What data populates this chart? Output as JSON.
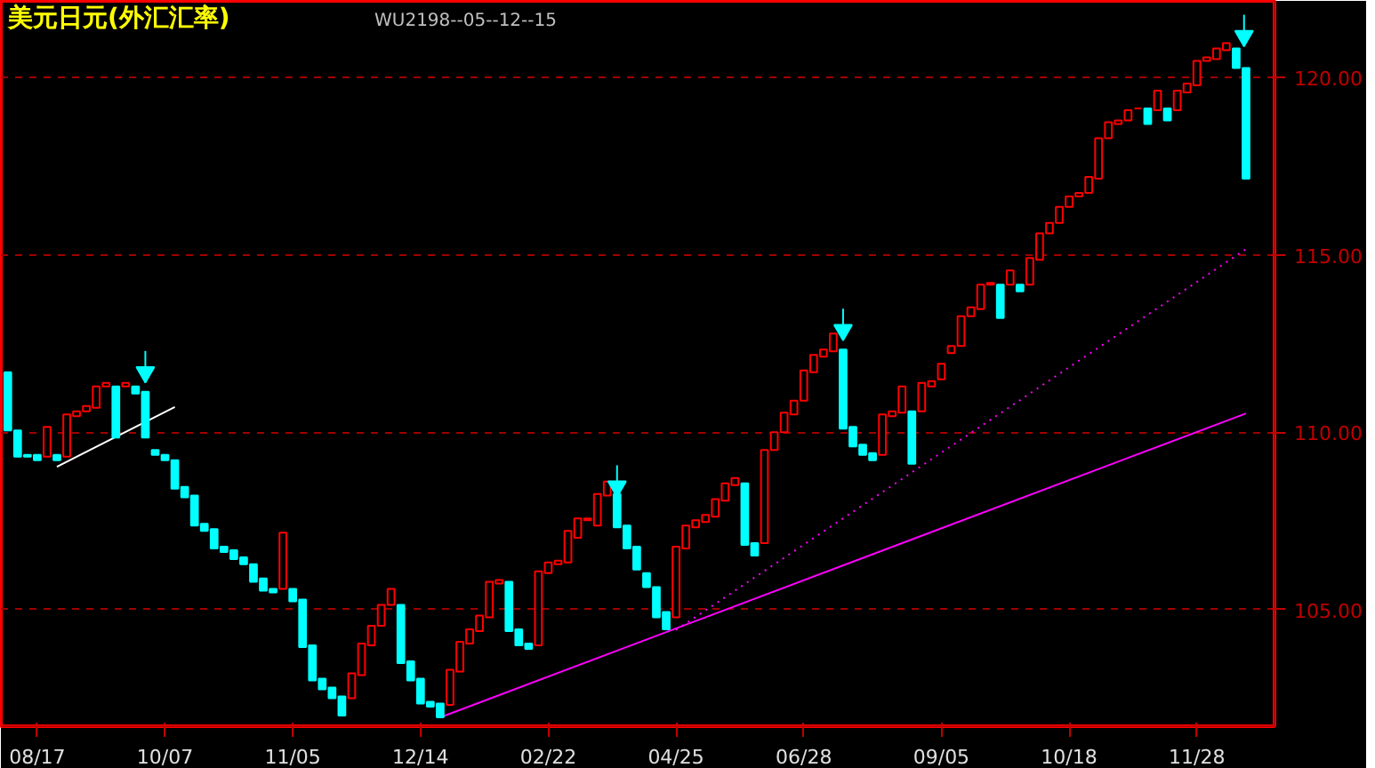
{
  "chart_data": {
    "type": "candlestick",
    "title": "美元日元(外汇汇率)",
    "subtitle": "WU2198--05--12--15",
    "categories": [
      null,
      null,
      null,
      "08/17",
      null,
      null,
      null,
      null,
      null,
      null,
      null,
      null,
      null,
      null,
      null,
      null,
      "10/07",
      null,
      null,
      null,
      null,
      null,
      null,
      null,
      null,
      null,
      null,
      null,
      null,
      "11/05",
      null,
      null,
      null,
      null,
      null,
      null,
      null,
      null,
      null,
      null,
      null,
      null,
      "12/14",
      null,
      null,
      null,
      null,
      null,
      null,
      null,
      null,
      null,
      null,
      null,
      null,
      "02/22",
      null,
      null,
      null,
      null,
      null,
      null,
      null,
      null,
      null,
      null,
      null,
      null,
      "04/25",
      null,
      null,
      null,
      null,
      null,
      null,
      null,
      null,
      null,
      null,
      null,
      null,
      "06/28",
      null,
      null,
      null,
      null,
      null,
      null,
      null,
      null,
      null,
      null,
      null,
      null,
      null,
      "09/05",
      null,
      null,
      null,
      null,
      null,
      null,
      null,
      null,
      null,
      null,
      null,
      null,
      "10/18",
      null,
      null,
      null,
      null,
      null,
      null,
      null,
      null,
      null,
      null,
      null,
      null,
      "11/28",
      null,
      null,
      null,
      null,
      null
    ],
    "ohlc": [
      [
        111.69,
        111.69,
        110.05,
        110.05
      ],
      [
        110.05,
        110.05,
        109.31,
        109.31
      ],
      [
        109.36,
        109.36,
        109.31,
        109.31
      ],
      [
        109.36,
        109.36,
        109.21,
        109.21
      ],
      [
        109.31,
        110.15,
        109.31,
        110.15
      ],
      [
        109.36,
        109.36,
        109.21,
        109.21
      ],
      [
        109.31,
        110.5,
        109.31,
        110.5
      ],
      [
        110.45,
        110.59,
        110.45,
        110.59
      ],
      [
        110.59,
        110.74,
        110.59,
        110.74
      ],
      [
        110.69,
        111.29,
        110.69,
        111.29
      ],
      [
        111.29,
        111.39,
        111.29,
        111.39
      ],
      [
        111.29,
        111.29,
        109.85,
        109.85
      ],
      [
        111.29,
        111.39,
        111.29,
        111.39
      ],
      [
        111.29,
        111.29,
        111.09,
        111.09
      ],
      [
        111.14,
        111.14,
        109.85,
        109.85
      ],
      [
        109.5,
        109.5,
        109.36,
        109.36
      ],
      [
        109.36,
        109.36,
        109.21,
        109.21
      ],
      [
        109.21,
        109.21,
        108.41,
        108.41
      ],
      [
        108.46,
        108.46,
        108.17,
        108.17
      ],
      [
        108.22,
        108.22,
        107.37,
        107.37
      ],
      [
        107.42,
        107.42,
        107.22,
        107.22
      ],
      [
        107.27,
        107.27,
        106.73,
        106.73
      ],
      [
        106.78,
        106.78,
        106.63,
        106.63
      ],
      [
        106.68,
        106.68,
        106.43,
        106.43
      ],
      [
        106.48,
        106.48,
        106.28,
        106.28
      ],
      [
        106.28,
        106.28,
        105.79,
        105.79
      ],
      [
        105.88,
        105.88,
        105.54,
        105.54
      ],
      [
        105.59,
        105.59,
        105.49,
        105.49
      ],
      [
        105.59,
        107.17,
        105.59,
        107.17
      ],
      [
        105.59,
        105.59,
        105.24,
        105.24
      ],
      [
        105.29,
        105.29,
        103.95,
        103.95
      ],
      [
        104.0,
        104.0,
        103.01,
        103.01
      ],
      [
        103.06,
        103.06,
        102.76,
        102.76
      ],
      [
        102.81,
        102.81,
        102.51,
        102.51
      ],
      [
        102.56,
        102.56,
        102.02,
        102.02
      ],
      [
        102.51,
        103.21,
        102.51,
        103.21
      ],
      [
        103.16,
        104.05,
        103.16,
        104.05
      ],
      [
        104.0,
        104.55,
        104.0,
        104.55
      ],
      [
        104.55,
        105.14,
        104.55,
        105.14
      ],
      [
        105.14,
        105.59,
        105.14,
        105.59
      ],
      [
        105.14,
        105.14,
        103.5,
        103.5
      ],
      [
        103.55,
        103.55,
        103.01,
        103.01
      ],
      [
        103.06,
        103.06,
        102.36,
        102.36
      ],
      [
        102.41,
        102.41,
        102.27,
        102.27
      ],
      [
        102.36,
        102.36,
        101.97,
        101.97
      ],
      [
        102.32,
        103.31,
        102.32,
        103.31
      ],
      [
        103.26,
        104.1,
        103.26,
        104.1
      ],
      [
        104.05,
        104.45,
        104.05,
        104.45
      ],
      [
        104.4,
        104.84,
        104.4,
        104.84
      ],
      [
        104.79,
        105.79,
        104.79,
        105.79
      ],
      [
        105.74,
        105.84,
        105.74,
        105.84
      ],
      [
        105.79,
        105.79,
        104.4,
        104.4
      ],
      [
        104.45,
        104.45,
        104.0,
        104.0
      ],
      [
        104.05,
        104.05,
        103.9,
        103.9
      ],
      [
        104.0,
        106.08,
        104.0,
        106.08
      ],
      [
        106.03,
        106.33,
        106.03,
        106.33
      ],
      [
        106.28,
        106.38,
        106.28,
        106.38
      ],
      [
        106.33,
        107.22,
        106.33,
        107.22
      ],
      [
        107.03,
        107.57,
        107.03,
        107.57
      ],
      [
        107.52,
        107.57,
        107.52,
        107.57
      ],
      [
        107.37,
        108.26,
        107.37,
        108.26
      ],
      [
        108.22,
        108.61,
        108.22,
        108.61
      ],
      [
        108.26,
        108.26,
        107.32,
        107.32
      ],
      [
        107.37,
        107.37,
        106.73,
        106.73
      ],
      [
        106.78,
        106.78,
        106.13,
        106.13
      ],
      [
        106.03,
        106.03,
        105.64,
        105.64
      ],
      [
        105.64,
        105.64,
        104.79,
        104.79
      ],
      [
        104.94,
        104.94,
        104.45,
        104.45
      ],
      [
        104.79,
        106.78,
        104.79,
        106.78
      ],
      [
        106.73,
        107.37,
        106.73,
        107.37
      ],
      [
        107.32,
        107.52,
        107.32,
        107.52
      ],
      [
        107.47,
        107.67,
        107.47,
        107.67
      ],
      [
        107.62,
        108.12,
        107.62,
        108.12
      ],
      [
        108.07,
        108.56,
        108.07,
        108.56
      ],
      [
        108.51,
        108.71,
        108.51,
        108.71
      ],
      [
        108.56,
        108.56,
        106.83,
        106.83
      ],
      [
        106.88,
        106.88,
        106.53,
        106.53
      ],
      [
        106.88,
        109.5,
        106.88,
        109.5
      ],
      [
        109.5,
        110.0,
        109.5,
        110.0
      ],
      [
        110.0,
        110.55,
        110.0,
        110.55
      ],
      [
        110.5,
        110.89,
        110.5,
        110.89
      ],
      [
        110.89,
        111.74,
        110.89,
        111.74
      ],
      [
        111.69,
        112.18,
        111.69,
        112.18
      ],
      [
        112.13,
        112.33,
        112.13,
        112.33
      ],
      [
        112.28,
        112.78,
        112.28,
        112.78
      ],
      [
        112.33,
        112.33,
        110.1,
        110.1
      ],
      [
        110.15,
        110.15,
        109.6,
        109.6
      ],
      [
        109.65,
        109.65,
        109.36,
        109.36
      ],
      [
        109.41,
        109.41,
        109.21,
        109.21
      ],
      [
        109.36,
        110.5,
        109.36,
        110.5
      ],
      [
        110.45,
        110.59,
        110.45,
        110.59
      ],
      [
        110.55,
        111.29,
        110.55,
        111.29
      ],
      [
        110.59,
        110.59,
        109.11,
        109.11
      ],
      [
        110.59,
        111.39,
        110.59,
        111.39
      ],
      [
        111.29,
        111.44,
        111.29,
        111.44
      ],
      [
        111.49,
        111.93,
        111.49,
        111.93
      ],
      [
        112.23,
        112.43,
        112.23,
        112.43
      ],
      [
        112.43,
        113.27,
        112.43,
        113.27
      ],
      [
        113.27,
        113.52,
        113.27,
        113.52
      ],
      [
        113.47,
        114.16,
        113.47,
        114.16
      ],
      [
        114.16,
        114.21,
        114.16,
        114.21
      ],
      [
        114.16,
        114.16,
        113.22,
        113.22
      ],
      [
        114.16,
        114.56,
        114.16,
        114.56
      ],
      [
        114.16,
        114.16,
        113.97,
        113.97
      ],
      [
        114.16,
        114.91,
        114.16,
        114.91
      ],
      [
        114.86,
        115.6,
        114.86,
        115.6
      ],
      [
        115.6,
        115.9,
        115.6,
        115.9
      ],
      [
        115.9,
        116.35,
        115.9,
        116.35
      ],
      [
        116.35,
        116.64,
        116.35,
        116.64
      ],
      [
        116.64,
        116.74,
        116.64,
        116.74
      ],
      [
        116.74,
        117.19,
        116.74,
        117.19
      ],
      [
        117.14,
        118.28,
        117.14,
        118.28
      ],
      [
        118.28,
        118.73,
        118.28,
        118.73
      ],
      [
        118.68,
        118.78,
        118.68,
        118.78
      ],
      [
        118.78,
        119.07,
        118.78,
        119.07
      ],
      [
        119.12,
        119.12,
        119.12,
        119.12
      ],
      [
        119.12,
        119.12,
        118.68,
        118.68
      ],
      [
        119.07,
        119.62,
        119.07,
        119.62
      ],
      [
        119.12,
        119.12,
        118.78,
        118.78
      ],
      [
        119.07,
        119.62,
        119.07,
        119.62
      ],
      [
        119.57,
        119.82,
        119.57,
        119.82
      ],
      [
        119.77,
        120.46,
        119.77,
        120.46
      ],
      [
        120.46,
        120.56,
        120.46,
        120.56
      ],
      [
        120.51,
        120.81,
        120.51,
        120.81
      ],
      [
        120.76,
        120.96,
        120.76,
        120.96
      ],
      [
        120.81,
        120.81,
        120.26,
        120.26
      ],
      [
        120.26,
        120.26,
        117.14,
        117.14
      ]
    ],
    "colors": [
      "#00ffff",
      "#00ffff",
      "#00ffff",
      "#00ffff",
      "#ff0000",
      "#00ffff",
      "#ff0000",
      "#ff0000",
      "#ff0000",
      "#ff0000",
      "#ff0000",
      "#00ffff",
      "#ff0000",
      "#00ffff",
      "#00ffff",
      "#00ffff",
      "#00ffff",
      "#00ffff",
      "#00ffff",
      "#00ffff",
      "#00ffff",
      "#00ffff",
      "#00ffff",
      "#00ffff",
      "#00ffff",
      "#00ffff",
      "#00ffff",
      "#00ffff",
      "#ff0000",
      "#00ffff",
      "#00ffff",
      "#00ffff",
      "#00ffff",
      "#00ffff",
      "#00ffff",
      "#ff0000",
      "#ff0000",
      "#ff0000",
      "#ff0000",
      "#ff0000",
      "#00ffff",
      "#00ffff",
      "#00ffff",
      "#00ffff",
      "#00ffff",
      "#ff0000",
      "#ff0000",
      "#ff0000",
      "#ff0000",
      "#ff0000",
      "#ff0000",
      "#00ffff",
      "#00ffff",
      "#00ffff",
      "#ff0000",
      "#ff0000",
      "#ff0000",
      "#ff0000",
      "#ff0000",
      "#ff0000",
      "#ff0000",
      "#ff0000",
      "#00ffff",
      "#00ffff",
      "#00ffff",
      "#00ffff",
      "#00ffff",
      "#00ffff",
      "#ff0000",
      "#ff0000",
      "#ff0000",
      "#ff0000",
      "#ff0000",
      "#ff0000",
      "#ff0000",
      "#00ffff",
      "#00ffff",
      "#ff0000",
      "#ff0000",
      "#ff0000",
      "#ff0000",
      "#ff0000",
      "#ff0000",
      "#ff0000",
      "#ff0000",
      "#00ffff",
      "#00ffff",
      "#00ffff",
      "#00ffff",
      "#ff0000",
      "#ff0000",
      "#ff0000",
      "#00ffff",
      "#ff0000",
      "#ff0000",
      "#ff0000",
      "#ff0000",
      "#ff0000",
      "#ff0000",
      "#ff0000",
      "#ff0000",
      "#00ffff",
      "#ff0000",
      "#00ffff",
      "#ff0000",
      "#ff0000",
      "#ff0000",
      "#ff0000",
      "#ff0000",
      "#ff0000",
      "#ff0000",
      "#ff0000",
      "#ff0000",
      "#ff0000",
      "#ff0000",
      "#ff0000",
      "#00ffff",
      "#ff0000",
      "#00ffff",
      "#ff0000",
      "#ff0000",
      "#ff0000",
      "#ff0000",
      "#ff0000",
      "#ff0000",
      "#00ffff",
      "#00ffff"
    ],
    "series": [
      {
        "type": "line",
        "color": "#ffffff",
        "line_style": "solid",
        "values": [
          null,
          null,
          null,
          null,
          null,
          109.03,
          null,
          null,
          null,
          null,
          null,
          null,
          null,
          null,
          null,
          null,
          null,
          110.71,
          null,
          null,
          null,
          null,
          null,
          null,
          null,
          null,
          null,
          null,
          null,
          null,
          null,
          null,
          null,
          null,
          null,
          null,
          null,
          null,
          null,
          null,
          null,
          null,
          null,
          null,
          null,
          null,
          null,
          null,
          null,
          null,
          null,
          null,
          null,
          null,
          null,
          null,
          null,
          null,
          null,
          null,
          null,
          null,
          null,
          null,
          null,
          null,
          null,
          null,
          null,
          null,
          null,
          null,
          null,
          null,
          null,
          null,
          null,
          null,
          null,
          null,
          null,
          null,
          null,
          null,
          null,
          null,
          null,
          null,
          null,
          null,
          null,
          null,
          null,
          null,
          null,
          null,
          null,
          null,
          null,
          null,
          null,
          null,
          null,
          null,
          null,
          null,
          null,
          null,
          null,
          null,
          null,
          null,
          null,
          null,
          null,
          null,
          null,
          null,
          null,
          null,
          null,
          null,
          null,
          null,
          null,
          null,
          null
        ]
      },
      {
        "type": "line",
        "color": "#ff00ff",
        "line_style": "solid",
        "values": [
          null,
          null,
          null,
          null,
          null,
          null,
          null,
          null,
          null,
          null,
          null,
          null,
          null,
          null,
          null,
          null,
          null,
          null,
          null,
          null,
          null,
          null,
          null,
          null,
          null,
          null,
          null,
          null,
          null,
          null,
          null,
          null,
          null,
          null,
          null,
          null,
          null,
          null,
          null,
          null,
          null,
          null,
          null,
          null,
          101.97,
          null,
          null,
          null,
          null,
          null,
          null,
          null,
          null,
          null,
          null,
          null,
          null,
          null,
          null,
          null,
          null,
          null,
          null,
          null,
          null,
          null,
          null,
          null,
          null,
          null,
          null,
          null,
          null,
          null,
          null,
          null,
          null,
          null,
          null,
          null,
          null,
          null,
          null,
          null,
          null,
          null,
          null,
          null,
          null,
          null,
          null,
          null,
          null,
          null,
          null,
          null,
          null,
          null,
          null,
          null,
          null,
          null,
          null,
          null,
          null,
          null,
          null,
          null,
          null,
          null,
          null,
          null,
          null,
          null,
          null,
          null,
          null,
          null,
          null,
          null,
          null,
          null,
          null,
          null,
          null,
          null,
          110.53
        ]
      },
      {
        "type": "line",
        "color": "#ff00ff",
        "line_style": "dotted",
        "values": [
          null,
          null,
          null,
          null,
          null,
          null,
          null,
          null,
          null,
          null,
          null,
          null,
          null,
          null,
          null,
          null,
          null,
          null,
          null,
          null,
          null,
          null,
          null,
          null,
          null,
          null,
          null,
          null,
          null,
          null,
          null,
          null,
          null,
          null,
          null,
          null,
          null,
          null,
          null,
          null,
          null,
          null,
          null,
          null,
          null,
          null,
          null,
          null,
          null,
          null,
          null,
          null,
          null,
          null,
          null,
          null,
          null,
          null,
          null,
          null,
          null,
          null,
          null,
          null,
          null,
          null,
          null,
          null,
          104.43,
          null,
          null,
          null,
          null,
          null,
          null,
          null,
          null,
          null,
          null,
          null,
          null,
          null,
          null,
          null,
          null,
          null,
          null,
          null,
          null,
          null,
          null,
          null,
          null,
          null,
          null,
          null,
          null,
          null,
          null,
          null,
          null,
          null,
          null,
          null,
          null,
          null,
          null,
          null,
          null,
          null,
          null,
          null,
          null,
          null,
          null,
          null,
          null,
          null,
          null,
          null,
          null,
          null,
          null,
          null,
          null,
          null,
          115.16
        ]
      }
    ],
    "ylim": [
      101.72,
      122.15
    ],
    "yticks": [
      {
        "value": 105,
        "label": "105.00"
      },
      {
        "value": 110,
        "label": "110.00"
      },
      {
        "value": 115,
        "label": "115.00"
      },
      {
        "value": 120,
        "label": "120.00"
      }
    ],
    "grid": "y"
  }
}
